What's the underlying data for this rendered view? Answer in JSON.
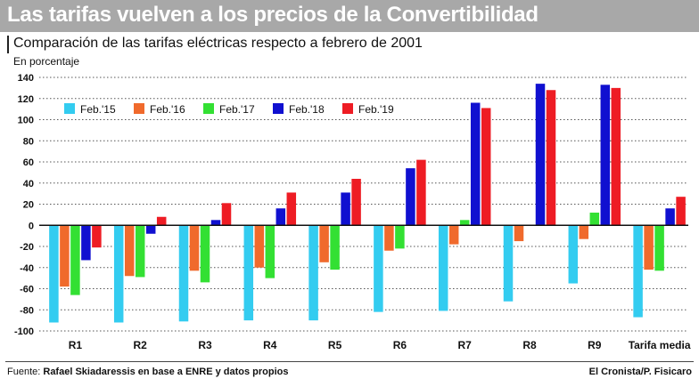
{
  "header": {
    "title": "Las tarifas vuelven a los precios de la Convertibilidad"
  },
  "footer": {
    "source_prefix": "Fuente:",
    "source_text": "Rafael Skiadaressis en base a ENRE y datos propios",
    "credit": "El Cronista/P. Fisicaro"
  },
  "chart_data": {
    "type": "bar",
    "title": "Comparación de las tarifas eléctricas respecto a febrero de 2001",
    "subtitle": "En porcentaje",
    "xlabel": "",
    "ylabel": "",
    "ylim": [
      -100,
      140
    ],
    "yticks": [
      -100,
      -80,
      -60,
      -40,
      -20,
      0,
      20,
      40,
      60,
      80,
      100,
      120,
      140
    ],
    "grid": true,
    "legend_position": "top-left",
    "categories": [
      "R1",
      "R2",
      "R3",
      "R4",
      "R5",
      "R6",
      "R7",
      "R8",
      "R9",
      "Tarifa media"
    ],
    "series": [
      {
        "name": "Feb.'15",
        "color": "#33ccf0",
        "values": [
          -92,
          -92,
          -91,
          -90,
          -90,
          -82,
          -81,
          -72,
          -55,
          -87
        ]
      },
      {
        "name": "Feb.'16",
        "color": "#f06a2c",
        "values": [
          -58,
          -48,
          -43,
          -40,
          -35,
          -24,
          -18,
          -15,
          -13,
          -42
        ]
      },
      {
        "name": "Feb.'17",
        "color": "#33e033",
        "values": [
          -66,
          -49,
          -54,
          -50,
          -42,
          -22,
          5,
          0,
          12,
          -43
        ]
      },
      {
        "name": "Feb.'18",
        "color": "#1010d0",
        "values": [
          -33,
          -8,
          5,
          16,
          31,
          54,
          116,
          134,
          133,
          16
        ]
      },
      {
        "name": "Feb.'19",
        "color": "#ee1c24",
        "values": [
          -21,
          8,
          21,
          31,
          44,
          62,
          111,
          128,
          130,
          27
        ]
      }
    ]
  }
}
